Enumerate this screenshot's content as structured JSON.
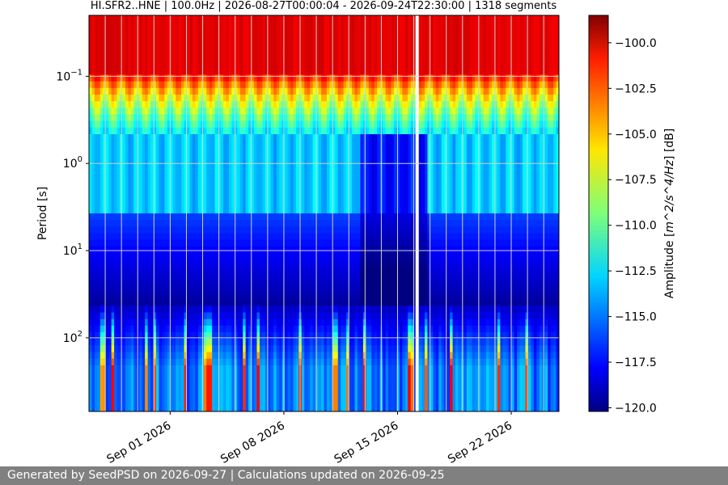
{
  "chart_data": {
    "type": "heatmap",
    "title": "HI.SFR2..HNE | 100.0Hz | 2026-08-27T00:00:04 - 2026-09-24T22:30:00 | 1318 segments",
    "xlabel": "",
    "ylabel": "Period [s]",
    "x_ticks": [
      "Sep 01 2026",
      "Sep 08 2026",
      "Sep 15 2026",
      "Sep 22 2026"
    ],
    "x_range": [
      "2026-08-27T00:00:04",
      "2026-09-24T22:30:00"
    ],
    "y_scale": "log",
    "y_ticks": [
      "10^-1",
      "10^0",
      "10^1",
      "10^2"
    ],
    "y_range": [
      0.02,
      700
    ],
    "colorbar": {
      "label": "Amplitude [m^2/s^4/Hz] [dB]",
      "ticks": [
        "−100.0",
        "−102.5",
        "−105.0",
        "−107.5",
        "−110.0",
        "−112.5",
        "−115.0",
        "−117.5",
        "−120.0"
      ],
      "range": [
        -120.2,
        -98.5
      ],
      "colormap": "jet"
    },
    "grid": true,
    "segments": 1318,
    "description_levels": {
      "short_period_db": -100,
      "microseism_db": -112,
      "long_period_db": -119
    }
  },
  "footer": {
    "text": "Generated by SeedPSD on 2026-09-27 | Calculations updated on 2026-09-25"
  }
}
